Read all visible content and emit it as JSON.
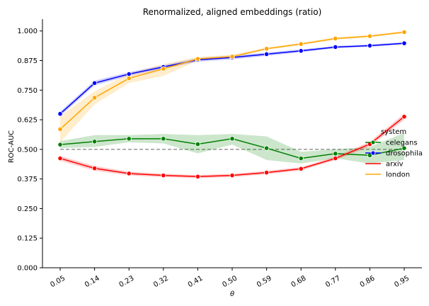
{
  "chart_data": {
    "type": "line",
    "title": "Renormalized, aligned embeddings (ratio)",
    "xlabel": "θ",
    "ylabel": "ROC-AUC",
    "categories": [
      "0.05",
      "0.14",
      "0.23",
      "0.32",
      "0.41",
      "0.50",
      "0.59",
      "0.68",
      "0.77",
      "0.86",
      "0.95"
    ],
    "ylim": [
      0,
      1.05
    ],
    "yticks": [
      "0.000",
      "0.125",
      "0.250",
      "0.375",
      "0.500",
      "0.625",
      "0.750",
      "0.875",
      "1.000"
    ],
    "ytick_values": [
      0,
      0.125,
      0.25,
      0.375,
      0.5,
      0.625,
      0.75,
      0.875,
      1.0
    ],
    "reference_line": 0.5,
    "legend": {
      "title": "system",
      "placement": "right"
    },
    "series": [
      {
        "name": "celegans",
        "color": "#008000",
        "values": [
          0.52,
          0.533,
          0.545,
          0.545,
          0.522,
          0.545,
          0.505,
          0.462,
          0.482,
          0.475,
          0.505
        ],
        "lower": [
          0.505,
          0.51,
          0.53,
          0.525,
          0.483,
          0.52,
          0.455,
          0.44,
          0.462,
          0.44,
          0.455
        ],
        "upper": [
          0.535,
          0.56,
          0.56,
          0.565,
          0.56,
          0.565,
          0.555,
          0.49,
          0.5,
          0.51,
          0.57
        ]
      },
      {
        "name": "drosophila",
        "color": "#0000ff",
        "values": [
          0.65,
          0.78,
          0.818,
          0.848,
          0.878,
          0.888,
          0.902,
          0.916,
          0.932,
          0.938,
          0.948
        ],
        "lower": [
          0.64,
          0.77,
          0.81,
          0.84,
          0.87,
          0.88,
          0.895,
          0.91,
          0.927,
          0.933,
          0.943
        ],
        "upper": [
          0.66,
          0.79,
          0.826,
          0.856,
          0.886,
          0.896,
          0.909,
          0.922,
          0.937,
          0.943,
          0.953
        ]
      },
      {
        "name": "arxiv",
        "color": "#ff0000",
        "values": [
          0.462,
          0.42,
          0.398,
          0.39,
          0.385,
          0.39,
          0.402,
          0.418,
          0.462,
          0.522,
          0.638
        ],
        "lower": [
          0.452,
          0.41,
          0.39,
          0.383,
          0.378,
          0.383,
          0.395,
          0.411,
          0.454,
          0.512,
          0.625
        ],
        "upper": [
          0.472,
          0.43,
          0.406,
          0.397,
          0.392,
          0.397,
          0.409,
          0.425,
          0.47,
          0.532,
          0.651
        ]
      },
      {
        "name": "london",
        "color": "#ffa500",
        "values": [
          0.585,
          0.718,
          0.8,
          0.84,
          0.882,
          0.892,
          0.925,
          0.945,
          0.968,
          0.978,
          0.995
        ],
        "lower": [
          0.53,
          0.69,
          0.78,
          0.81,
          0.875,
          0.885,
          0.92,
          0.94,
          0.963,
          0.973,
          0.99
        ],
        "upper": [
          0.64,
          0.745,
          0.82,
          0.86,
          0.89,
          0.9,
          0.93,
          0.95,
          0.973,
          0.983,
          1.0
        ]
      }
    ]
  }
}
